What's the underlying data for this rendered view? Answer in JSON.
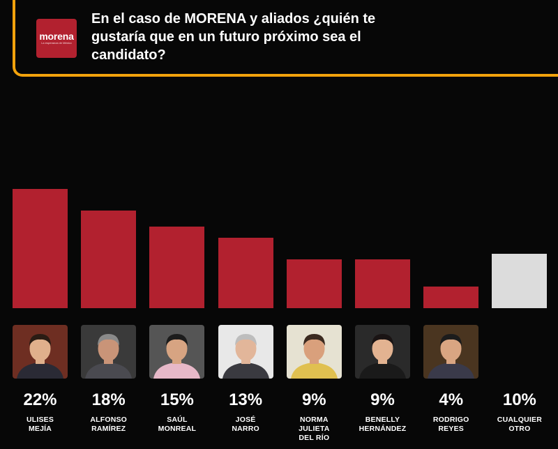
{
  "header": {
    "logo_name": "morena",
    "logo_tagline": "La esperanza de México",
    "question": "En el caso de MORENA y aliados ¿quién te gustaría que en un futuro próximo sea el candidato?"
  },
  "colors": {
    "background": "#070707",
    "accent_frame": "#f2a20c",
    "bar_candidate": "#b2212f",
    "bar_other": "#dcdcdc",
    "text": "#ffffff"
  },
  "chart_data": {
    "type": "bar",
    "title": "En el caso de MORENA y aliados ¿quién te gustaría que en un futuro próximo sea el candidato?",
    "categories": [
      "ULISES MEJÍA",
      "ALFONSO RAMÍREZ",
      "SAÚL MONREAL",
      "JOSÉ NARRO",
      "NORMA JULIETA DEL RÍO",
      "BENELLY HERNÁNDEZ",
      "RODRIGO REYES",
      "CUALQUIER OTRO"
    ],
    "values": [
      22,
      18,
      15,
      13,
      9,
      9,
      4,
      10
    ],
    "value_labels": [
      "22%",
      "18%",
      "15%",
      "13%",
      "9%",
      "9%",
      "4%",
      "10%"
    ],
    "name_labels": [
      "ULISES\nMEJÍA",
      "ALFONSO\nRAMÍREZ",
      "SAÚL\nMONREAL",
      "JOSÉ\nNARRO",
      "NORMA\nJULIETA\nDEL RÍO",
      "BENELLY\nHERNÁNDEZ",
      "RODRIGO\nREYES",
      "CUALQUIER\nOTRO"
    ],
    "has_photo": [
      true,
      true,
      true,
      true,
      true,
      true,
      true,
      false
    ],
    "bar_colors": [
      "#b2212f",
      "#b2212f",
      "#b2212f",
      "#b2212f",
      "#b2212f",
      "#b2212f",
      "#b2212f",
      "#dcdcdc"
    ],
    "xlabel": "",
    "ylabel": "",
    "ylim": [
      0,
      22
    ],
    "grid": false,
    "legend": "none"
  }
}
